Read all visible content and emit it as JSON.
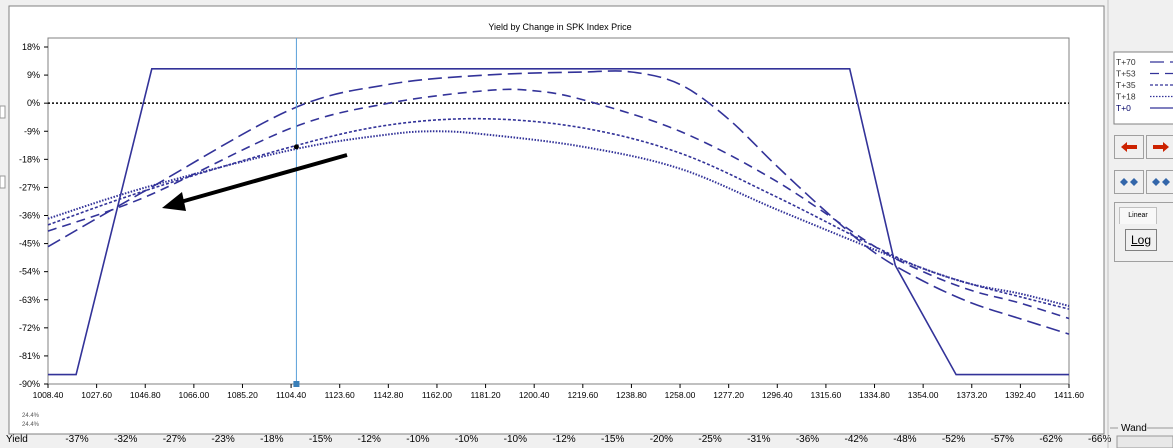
{
  "chart_data": {
    "type": "line",
    "title": "Yield by Change in SPK Index Price",
    "xlabel": "",
    "ylabel": "",
    "x_ticks": [
      1008.4,
      1027.6,
      1046.8,
      1066.0,
      1085.2,
      1104.4,
      1123.6,
      1142.8,
      1162.0,
      1181.2,
      1200.4,
      1219.6,
      1238.8,
      1258.0,
      1277.2,
      1296.4,
      1315.6,
      1334.8,
      1354.0,
      1373.2,
      1392.4,
      1411.6
    ],
    "x_tick_labels": [
      "1008.40",
      "1027.60",
      "1046.80",
      "1066.00",
      "1085.20",
      "1104.40",
      "1123.60",
      "1142.80",
      "1162.00",
      "1181.20",
      "1200.40",
      "1219.60",
      "1238.80",
      "1258.00",
      "1277.20",
      "1296.40",
      "1315.60",
      "1334.80",
      "1354.00",
      "1373.20",
      "1392.40",
      "1411.60"
    ],
    "y_tick_labels": [
      "18%",
      "9%",
      "0%",
      "-9%",
      "-18%",
      "-27%",
      "-36%",
      "-45%",
      "-54%",
      "-63%",
      "-72%",
      "-81%",
      "-90%"
    ],
    "y_ticks": [
      18,
      9,
      0,
      -9,
      -18,
      -27,
      -36,
      -45,
      -54,
      -63,
      -72,
      -81,
      -90
    ],
    "xlim": [
      1008.4,
      1411.6
    ],
    "ylim": [
      -90,
      18
    ],
    "grid": false,
    "legend_position": "right",
    "zero_line": 0,
    "cursor_x": 1106.5,
    "cursor_marker_y": -14,
    "series": [
      {
        "name": "T+70",
        "style": "dash-long",
        "x": [
          1008.4,
          1047,
          1104.4,
          1143,
          1181,
          1220,
          1238.8,
          1258,
          1277,
          1296,
          1316,
          1335,
          1354,
          1373,
          1392,
          1411.6
        ],
        "y": [
          -46,
          -28,
          -2,
          6,
          9,
          10,
          10,
          6,
          -5,
          -20,
          -35,
          -48,
          -57,
          -64,
          -69,
          -74
        ]
      },
      {
        "name": "T+53",
        "style": "dash-med",
        "x": [
          1008.4,
          1047,
          1104.4,
          1143,
          1181,
          1200,
          1220,
          1258,
          1296,
          1335,
          1354,
          1373,
          1392,
          1411.6
        ],
        "y": [
          -41,
          -30,
          -8,
          0,
          4,
          4,
          1,
          -9,
          -25,
          -46,
          -54,
          -60,
          -64,
          -69
        ]
      },
      {
        "name": "T+35",
        "style": "dash-short",
        "x": [
          1008.4,
          1047,
          1104.4,
          1143,
          1181,
          1220,
          1258,
          1296,
          1335,
          1354,
          1373,
          1392,
          1411.6
        ],
        "y": [
          -39,
          -28,
          -14,
          -7,
          -5,
          -8,
          -16,
          -30,
          -46,
          -53,
          -58,
          -62,
          -66
        ]
      },
      {
        "name": "T+18",
        "style": "dot-fine",
        "x": [
          1008.4,
          1047,
          1104.4,
          1143,
          1162,
          1181,
          1220,
          1258,
          1296,
          1335,
          1354,
          1373,
          1392,
          1411.6
        ],
        "y": [
          -37,
          -27,
          -15,
          -10,
          -9,
          -10,
          -14,
          -21,
          -34,
          -47,
          -53,
          -58,
          -61,
          -65
        ]
      },
      {
        "name": "T+0",
        "style": "solid",
        "x": [
          1008.4,
          1019.5,
          1049.4,
          1063,
          1325,
          1343,
          1367,
          1411.6
        ],
        "y": [
          -87,
          -87,
          11,
          11,
          11,
          -52,
          -87,
          -87
        ]
      }
    ],
    "yield_row": {
      "label": "Yield",
      "values": [
        "-37%",
        "-32%",
        "-27%",
        "-23%",
        "-18%",
        "-15%",
        "-12%",
        "-10%",
        "-10%",
        "-10%",
        "-12%",
        "-15%",
        "-20%",
        "-25%",
        "-31%",
        "-36%",
        "-42%",
        "-48%",
        "-52%",
        "-57%",
        "-62%",
        "-66%"
      ]
    },
    "corner_label_top": "24.4%",
    "corner_label_bottom": "24.4%"
  },
  "controls": {
    "linear_label": "Linear",
    "log_label": "Log",
    "wand_label": "Wand",
    "left_arrow_icon": "red-left-arrow-icon",
    "right_arrow_icon": "red-right-arrow-icon",
    "zoom_in_icon": "double-diamond-icon",
    "zoom_out_icon": "double-diamond-icon"
  },
  "colors": {
    "series": "#333399",
    "cursor": "#5aa0d8",
    "frame": "#808080",
    "background": "#f0f0f0",
    "plot_bg": "#ffffff",
    "arrow": "#000000",
    "red_arrow": "#cc2200",
    "blue_diamond": "#3366aa"
  }
}
